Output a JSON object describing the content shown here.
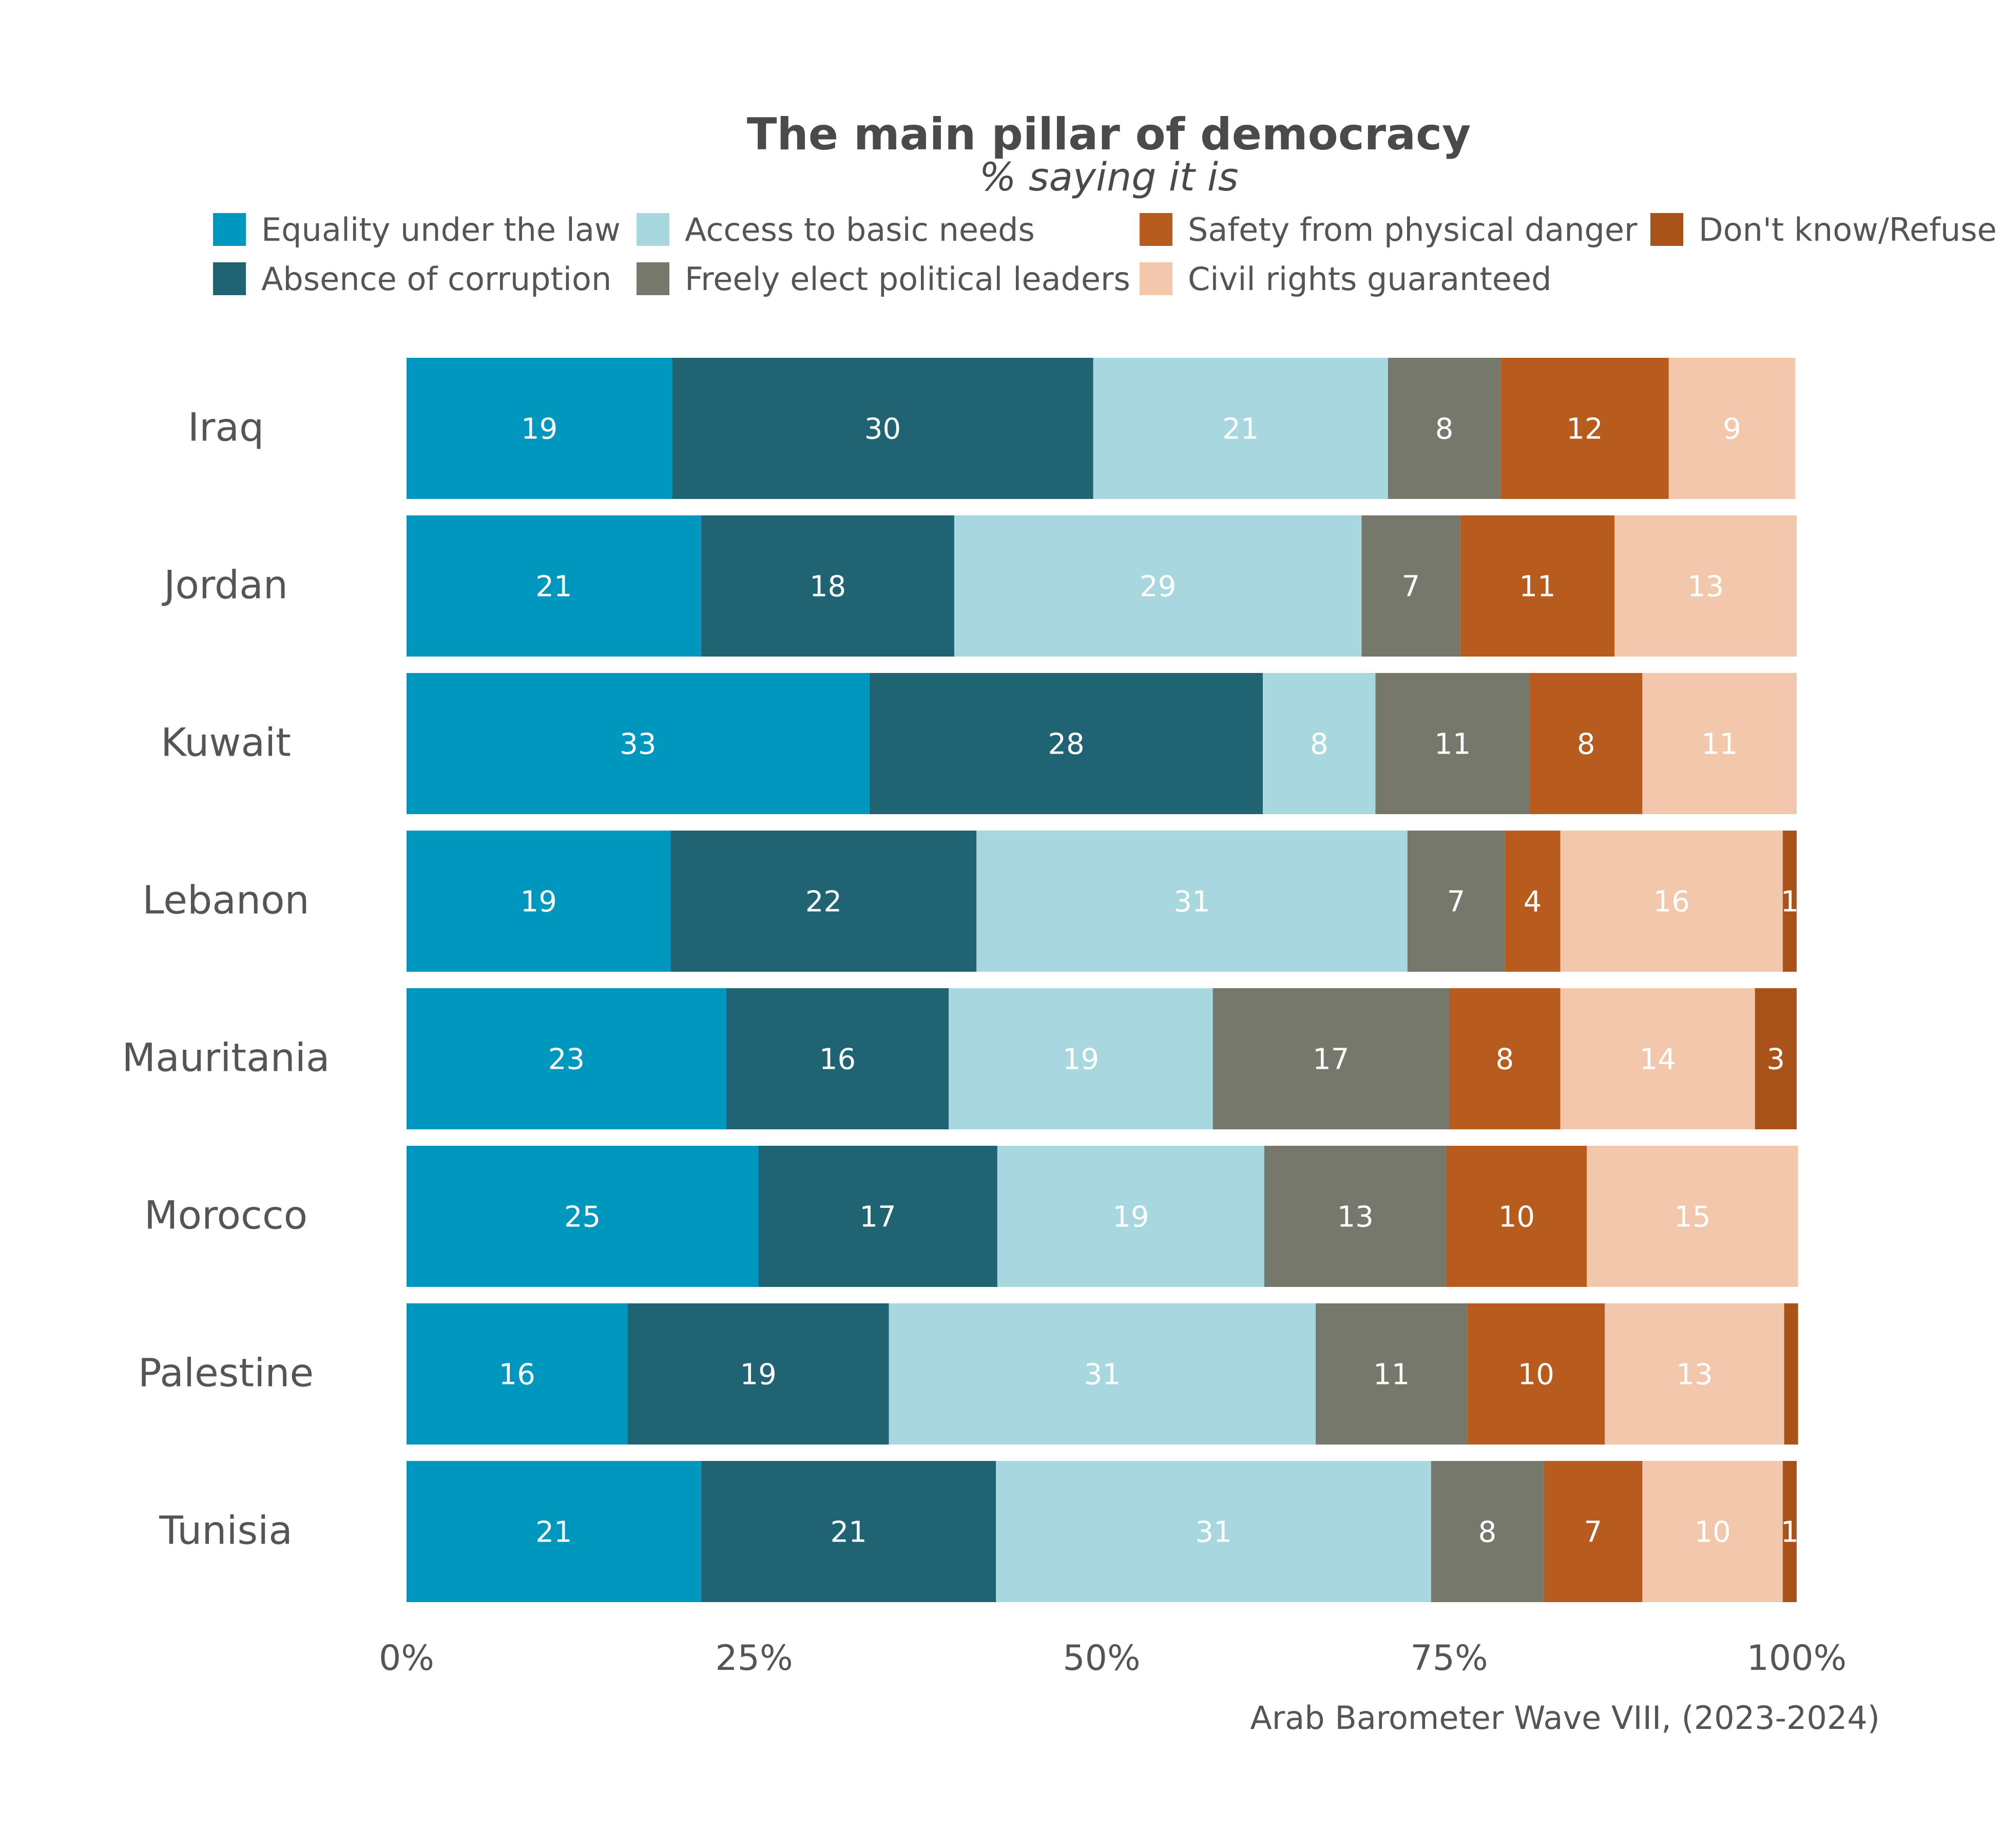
{
  "chart_data": {
    "type": "bar",
    "orientation": "horizontal",
    "stacked": true,
    "title": "The main pillar of democracy",
    "subtitle": "% saying it is",
    "source": "Arab Barometer Wave VIII, (2023-2024)",
    "categories": [
      "Iraq",
      "Jordan",
      "Kuwait",
      "Lebanon",
      "Mauritania",
      "Morocco",
      "Palestine",
      "Tunisia"
    ],
    "xlim": [
      0,
      100
    ],
    "x_ticks": [
      0,
      25,
      50,
      75,
      100
    ],
    "x_tick_labels": [
      "0%",
      "25%",
      "50%",
      "75%",
      "100%"
    ],
    "legend_position": "top",
    "series": [
      {
        "name": "Equality under the law",
        "color": "#0097bf",
        "label_color": "#ffffff",
        "values": [
          19.1,
          21.2,
          33.3,
          19.0,
          23.0,
          25.3,
          15.9,
          21.2
        ],
        "labels": [
          "19",
          "21",
          "33",
          "19",
          "23",
          "25",
          "16",
          "21"
        ]
      },
      {
        "name": "Absence of corruption",
        "color": "#206474",
        "label_color": "#ffffff",
        "values": [
          30.3,
          18.2,
          28.3,
          22.0,
          16.0,
          17.2,
          18.8,
          21.2
        ],
        "labels": [
          "30",
          "18",
          "28",
          "22",
          "16",
          "17",
          "19",
          "21"
        ]
      },
      {
        "name": "Access to basic needs",
        "color": "#a9d7e0",
        "label_color": "#ffffff",
        "values": [
          21.2,
          29.3,
          8.1,
          31.0,
          19.0,
          19.2,
          30.7,
          31.3
        ],
        "labels": [
          "21",
          "29",
          "8",
          "31",
          "19",
          "19",
          "31",
          "31"
        ]
      },
      {
        "name": "Freely elect political leaders",
        "color": "#76786b",
        "label_color": "#ffffff",
        "values": [
          8.1,
          7.1,
          11.1,
          7.0,
          17.0,
          13.1,
          10.9,
          8.1
        ],
        "labels": [
          "8",
          "7",
          "11",
          "7",
          "17",
          "13",
          "11",
          "8"
        ]
      },
      {
        "name": "Safety from physical danger",
        "color": "#b75c1e",
        "label_color": "#ffffff",
        "values": [
          12.1,
          11.1,
          8.1,
          4.0,
          8.0,
          10.1,
          9.9,
          7.1
        ],
        "labels": [
          "12",
          "11",
          "8",
          "4",
          "8",
          "10",
          "10",
          "7"
        ]
      },
      {
        "name": "Civil rights guaranteed",
        "color": "#f2c7ab",
        "label_color": "#ffffff",
        "values": [
          9.1,
          13.1,
          11.1,
          16.0,
          14.0,
          15.2,
          12.9,
          10.1
        ],
        "labels": [
          "9",
          "13",
          "11",
          "16",
          "14",
          "15",
          "13",
          "10"
        ]
      },
      {
        "name": "Don't know/Refused",
        "legend_label": "Don't know/Refuse",
        "color": "#a9531a",
        "label_color": "#ffffff",
        "values": [
          0,
          0,
          0,
          1.0,
          3.0,
          0,
          1.0,
          1.0
        ],
        "labels": [
          "",
          "",
          "",
          "1",
          "3",
          "",
          "",
          "1"
        ]
      }
    ]
  }
}
